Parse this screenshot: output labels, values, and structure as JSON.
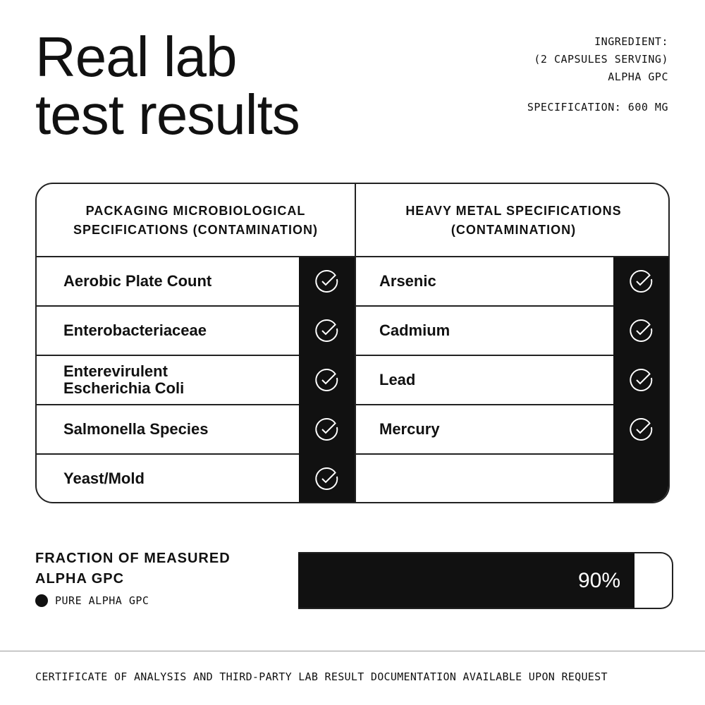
{
  "title": {
    "line1": "Real lab",
    "line2": "test results"
  },
  "info": {
    "ingredient_label": "INGREDIENT:",
    "serving": "(2 CAPSULES SERVING)",
    "ingredient": "ALPHA GPC",
    "specification": "SPECIFICATION: 600 MG"
  },
  "table": {
    "left_header": {
      "line1": "PACKAGING MICROBIOLOGICAL",
      "line2": "SPECIFICATIONS (CONTAMINATION)"
    },
    "right_header": {
      "line1": "HEAVY METAL SPECIFICATIONS",
      "line2": "(CONTAMINATION)"
    },
    "left_rows": [
      {
        "line1": "Aerobic Plate Count",
        "line2": "",
        "pass": true
      },
      {
        "line1": "Enterobacteriaceae",
        "line2": "",
        "pass": true
      },
      {
        "line1": "Enterevirulent",
        "line2": "Escherichia Coli",
        "pass": true
      },
      {
        "line1": "Salmonella Species",
        "line2": "",
        "pass": true
      },
      {
        "line1": "Yeast/Mold",
        "line2": "",
        "pass": true
      }
    ],
    "right_rows": [
      {
        "line1": "Arsenic",
        "pass": true
      },
      {
        "line1": "Cadmium",
        "pass": true
      },
      {
        "line1": "Lead",
        "pass": true
      },
      {
        "line1": "Mercury",
        "pass": true
      }
    ],
    "check_icon": "check-circle-icon"
  },
  "fraction": {
    "label1": "FRACTION OF MEASURED",
    "label2": "ALPHA GPC",
    "legend": "PURE ALPHA GPC",
    "value_label": "90%",
    "value": 0.9
  },
  "footer": "CERTIFICATE OF ANALYSIS AND THIRD-PARTY LAB RESULT DOCUMENTATION AVAILABLE UPON REQUEST",
  "colors": {
    "ink": "#111111",
    "background": "#ffffff"
  }
}
